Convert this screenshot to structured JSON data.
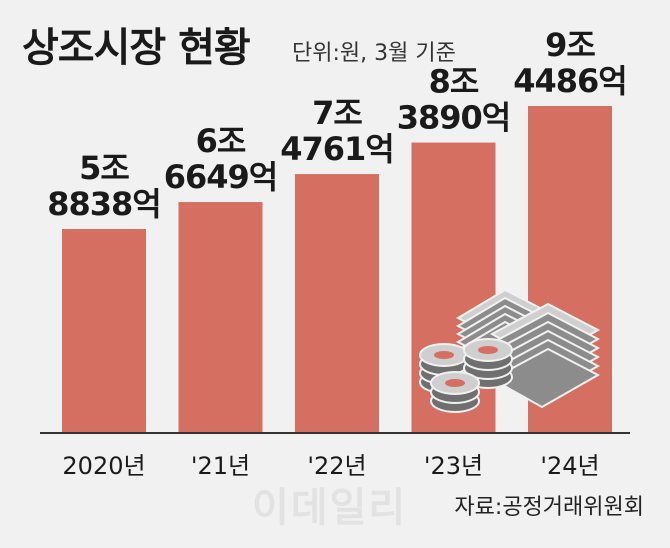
{
  "header": {
    "title": "상조시장 현황",
    "unit_note": "단위:원, 3월 기준"
  },
  "footer": {
    "source": "자료:공정거래위원회",
    "watermark": "이데일리"
  },
  "colors": {
    "bar": "#d56f61",
    "background": "#f1f1f1",
    "axis": "#333333",
    "icon": "money-stack-and-coins-icon"
  },
  "chart_data": {
    "type": "bar",
    "title": "상조시장 현황",
    "xlabel": "",
    "ylabel": "",
    "categories": [
      "2020년",
      "'21년",
      "'22년",
      "'23년",
      "'24년"
    ],
    "values": [
      58838,
      66649,
      74761,
      83890,
      94486
    ],
    "value_unit": "억원",
    "data_labels": [
      [
        "5조",
        "8838억"
      ],
      [
        "6조",
        "6649억"
      ],
      [
        "7조",
        "4761억"
      ],
      [
        "8조",
        "3890억"
      ],
      [
        "9조",
        "4486억"
      ]
    ],
    "ylim": [
      0,
      100000
    ],
    "grid": false,
    "legend": "none"
  }
}
